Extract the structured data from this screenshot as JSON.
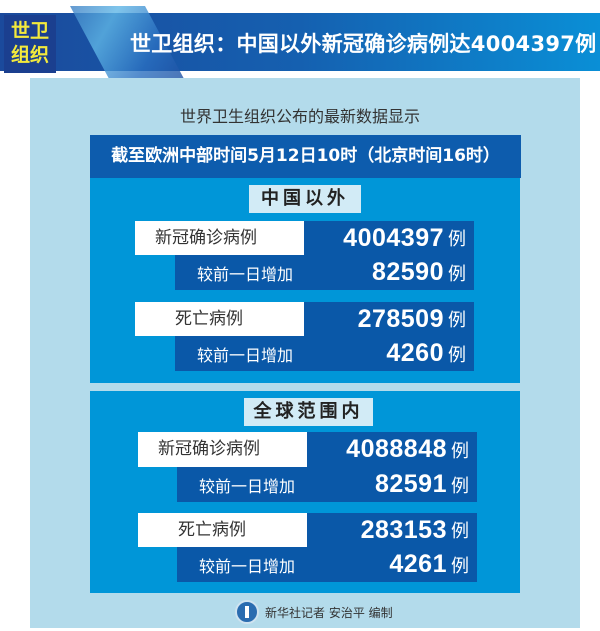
{
  "header": {
    "badge_line1": "世卫",
    "badge_line2": "组织",
    "title": "世卫组织：中国以外新冠确诊病例达4004397例"
  },
  "subtitle": "世界卫生组织公布的最新数据显示",
  "date_bar": "截至欧洲中部时间5月12日10时（北京时间16时）",
  "sections": [
    {
      "title": "中国以外",
      "confirmed": {
        "label": "新冠确诊病例",
        "value": "4004397",
        "unit": "例"
      },
      "confirmed_increase": {
        "label": "较前一日增加",
        "value": "82590",
        "unit": "例"
      },
      "deaths": {
        "label": "死亡病例",
        "value": "278509",
        "unit": "例"
      },
      "deaths_increase": {
        "label": "较前一日增加",
        "value": "4260",
        "unit": "例"
      }
    },
    {
      "title": "全球范围内",
      "confirmed": {
        "label": "新冠确诊病例",
        "value": "4088848",
        "unit": "例"
      },
      "confirmed_increase": {
        "label": "较前一日增加",
        "value": "82591",
        "unit": "例"
      },
      "deaths": {
        "label": "死亡病例",
        "value": "283153",
        "unit": "例"
      },
      "deaths_increase": {
        "label": "较前一日增加",
        "value": "4261",
        "unit": "例"
      }
    }
  ],
  "footer": {
    "credit": "新华社记者 安治平 编制",
    "logo_icon": "xinhua-logo-icon"
  },
  "colors": {
    "header": "#1560b0",
    "badge_text": "#f4ea3c",
    "panel": "#b3dbeb",
    "date_bar": "#0d5cad",
    "section": "#0096d8",
    "value_box": "#0a58a8"
  }
}
